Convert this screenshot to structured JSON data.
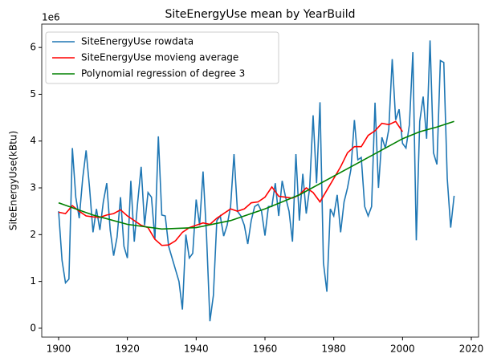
{
  "chart_data": {
    "type": "line",
    "title": "SiteEnergyUse mean by YearBuild",
    "y_label": "SiteEnergyUse(kBtu)",
    "y_offset_label": "1e6",
    "xlim": [
      1895.1,
      2022.1
    ],
    "xticks": [
      1900,
      1920,
      1940,
      1960,
      1980,
      2000,
      2020
    ],
    "ylim": [
      -0.19,
      6.5
    ],
    "yticks": [
      0,
      1,
      2,
      3,
      4,
      5,
      6
    ],
    "legend": "upper left",
    "series": [
      {
        "name": "SiteEnergyUse rowdata",
        "color": "#1f77b4",
        "x": [
          1900,
          1901,
          1902,
          1903,
          1904,
          1905,
          1906,
          1907,
          1908,
          1909,
          1910,
          1911,
          1912,
          1913,
          1914,
          1915,
          1916,
          1917,
          1918,
          1919,
          1920,
          1921,
          1922,
          1923,
          1924,
          1925,
          1926,
          1927,
          1928,
          1929,
          1930,
          1931,
          1932,
          1933,
          1934,
          1935,
          1936,
          1937,
          1938,
          1939,
          1940,
          1941,
          1942,
          1943,
          1944,
          1945,
          1946,
          1947,
          1948,
          1949,
          1950,
          1951,
          1952,
          1953,
          1954,
          1955,
          1956,
          1957,
          1958,
          1959,
          1960,
          1961,
          1962,
          1963,
          1964,
          1965,
          1966,
          1967,
          1968,
          1969,
          1970,
          1971,
          1972,
          1973,
          1974,
          1975,
          1976,
          1977,
          1978,
          1979,
          1980,
          1981,
          1982,
          1983,
          1984,
          1985,
          1986,
          1987,
          1988,
          1989,
          1990,
          1991,
          1992,
          1993,
          1994,
          1995,
          1996,
          1997,
          1998,
          1999,
          2000,
          2001,
          2002,
          2003,
          2004,
          2005,
          2006,
          2007,
          2008,
          2009,
          2010,
          2011,
          2012,
          2013,
          2014,
          2015
        ],
        "values": [
          2.5,
          1.45,
          0.97,
          1.05,
          3.85,
          2.8,
          2.35,
          3.2,
          3.8,
          3.0,
          2.05,
          2.55,
          2.1,
          2.7,
          3.1,
          2.1,
          1.55,
          1.95,
          2.8,
          1.75,
          1.5,
          3.15,
          1.85,
          2.7,
          3.45,
          2.2,
          2.9,
          2.8,
          1.9,
          4.1,
          2.42,
          2.4,
          1.75,
          1.5,
          1.25,
          1.0,
          0.4,
          2.0,
          1.5,
          1.6,
          2.75,
          2.2,
          3.35,
          2.0,
          0.15,
          0.7,
          2.3,
          2.4,
          1.97,
          2.2,
          2.6,
          3.72,
          2.5,
          2.4,
          2.2,
          1.8,
          2.3,
          2.6,
          2.65,
          2.5,
          1.98,
          2.6,
          2.6,
          3.1,
          2.4,
          3.15,
          2.8,
          2.5,
          1.85,
          3.72,
          2.3,
          3.3,
          2.45,
          3.0,
          4.55,
          3.1,
          4.83,
          1.4,
          0.78,
          2.55,
          2.4,
          2.85,
          2.05,
          2.7,
          3.0,
          3.4,
          4.45,
          3.6,
          3.65,
          2.6,
          2.4,
          2.6,
          4.82,
          3.0,
          4.08,
          3.85,
          4.25,
          5.75,
          4.45,
          4.68,
          3.95,
          3.85,
          4.35,
          5.9,
          1.88,
          4.42,
          4.95,
          4.05,
          6.15,
          3.75,
          3.5,
          5.72,
          5.68,
          3.2,
          2.15,
          2.83
        ]
      },
      {
        "name": "SiteEnergyUse movieng average",
        "color": "#ff0000",
        "x": [
          1900,
          1902,
          1904,
          1906,
          1908,
          1910,
          1912,
          1914,
          1916,
          1918,
          1920,
          1922,
          1924,
          1926,
          1928,
          1930,
          1932,
          1934,
          1936,
          1938,
          1940,
          1942,
          1944,
          1946,
          1948,
          1950,
          1952,
          1954,
          1956,
          1958,
          1960,
          1962,
          1964,
          1966,
          1968,
          1970,
          1972,
          1974,
          1976,
          1978,
          1980,
          1982,
          1984,
          1986,
          1988,
          1990,
          1992,
          1994,
          1996,
          1998,
          2000
        ],
        "values": [
          2.48,
          2.45,
          2.62,
          2.5,
          2.4,
          2.38,
          2.37,
          2.42,
          2.45,
          2.53,
          2.4,
          2.3,
          2.2,
          2.15,
          1.9,
          1.77,
          1.78,
          1.87,
          2.05,
          2.15,
          2.2,
          2.25,
          2.22,
          2.35,
          2.45,
          2.55,
          2.5,
          2.55,
          2.68,
          2.7,
          2.8,
          3.02,
          2.82,
          2.8,
          2.78,
          2.85,
          3.0,
          2.9,
          2.7,
          2.95,
          3.2,
          3.45,
          3.75,
          3.88,
          3.88,
          4.12,
          4.22,
          4.38,
          4.35,
          4.42,
          4.2
        ]
      },
      {
        "name": "Polynomial regression of degree 3",
        "color": "#008000",
        "x": [
          1900,
          1910,
          1920,
          1930,
          1940,
          1950,
          1960,
          1970,
          1980,
          1990,
          2000,
          2005,
          2010,
          2015
        ],
        "values": [
          2.68,
          2.42,
          2.22,
          2.12,
          2.15,
          2.3,
          2.55,
          2.85,
          3.25,
          3.65,
          4.05,
          4.2,
          4.3,
          4.42
        ]
      }
    ]
  }
}
